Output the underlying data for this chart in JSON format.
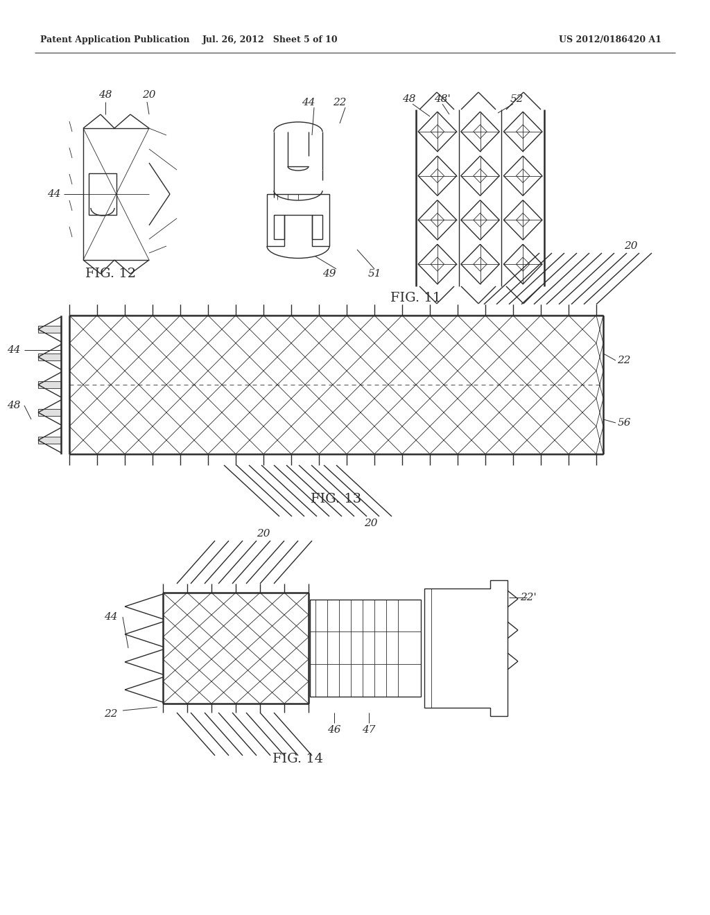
{
  "background_color": "#ffffff",
  "header_left": "Patent Application Publication",
  "header_mid": "Jul. 26, 2012   Sheet 5 of 10",
  "header_right": "US 2012/0186420 A1",
  "fig12_label": "FIG. 12",
  "fig11_label": "FIG. 11",
  "fig13_label": "FIG. 13",
  "fig14_label": "FIG. 14",
  "line_color": "#2a2a2a",
  "lw_thin": 0.6,
  "lw_med": 1.0,
  "lw_thick": 1.8,
  "lw_leader": 0.7,
  "fontsize_label": 11,
  "fontsize_fig": 14,
  "fontsize_header": 9
}
